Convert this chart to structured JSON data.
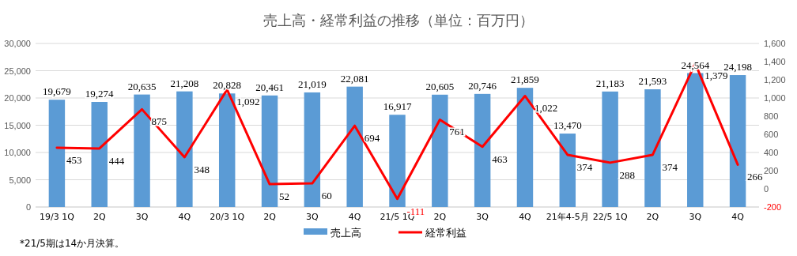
{
  "chart_data": {
    "type": "bar",
    "title": "売上高・経常利益の推移（単位：百万円）",
    "categories": [
      "19/3 1Q",
      "2Q",
      "3Q",
      "4Q",
      "20/3 1Q",
      "2Q",
      "3Q",
      "4Q",
      "21/5 1Q",
      "2Q",
      "3Q",
      "4Q",
      "21年4-5月",
      "22/5 1Q",
      "2Q",
      "3Q",
      "4Q"
    ],
    "series": [
      {
        "name": "売上高",
        "color": "#5b9bd5",
        "values": [
          19679,
          19274,
          20635,
          21208,
          20828,
          20461,
          21019,
          22081,
          16917,
          20605,
          20746,
          21859,
          13470,
          21183,
          21593,
          24564,
          24198
        ],
        "value_labels": [
          "19,679",
          "19,274",
          "20,635",
          "21,208",
          "20,828",
          "20,461",
          "21,019",
          "22,081",
          "16,917",
          "20,605",
          "20,746",
          "21,859",
          "13,470",
          "21,183",
          "21,593",
          "24,564",
          "24,198"
        ]
      },
      {
        "name": "経常利益",
        "type": "line",
        "axis": "y2",
        "color": "#ff0000",
        "values": [
          453,
          444,
          875,
          348,
          1092,
          52,
          60,
          694,
          -111,
          761,
          463,
          1022,
          374,
          288,
          374,
          1379,
          266
        ],
        "value_labels": [
          "453",
          "444",
          "875",
          "348",
          "1,092",
          "52",
          "60",
          "694",
          "-111",
          "761",
          "463",
          "1,022",
          "374",
          "288",
          "374",
          "1,379",
          "266"
        ]
      }
    ],
    "ylim": [
      0,
      30000
    ],
    "yticks": [
      {
        "value": 0,
        "label": "0"
      },
      {
        "value": 5000,
        "label": "5,000"
      },
      {
        "value": 10000,
        "label": "10,000"
      },
      {
        "value": 15000,
        "label": "15,000"
      },
      {
        "value": 20000,
        "label": "20,000"
      },
      {
        "value": 25000,
        "label": "25,000"
      },
      {
        "value": 30000,
        "label": "30,000"
      }
    ],
    "y2lim": [
      -200,
      1600
    ],
    "y2ticks": [
      -200,
      0,
      200,
      400,
      600,
      800,
      {
        "value": 1000,
        "label": "1,000"
      },
      {
        "value": 1200,
        "label": "1,200"
      },
      {
        "value": 1400,
        "label": "1,400"
      },
      {
        "value": 1600,
        "label": "1,600"
      }
    ],
    "grid": "y",
    "legend": "bottom",
    "marker": "none",
    "annotations": [
      "*21/5期は14か月決算。"
    ]
  }
}
